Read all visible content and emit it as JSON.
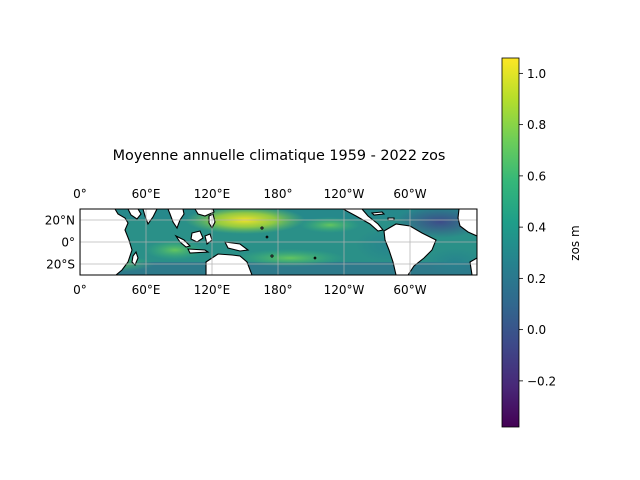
{
  "title": "Moyenne annuelle climatique 1959 - 2022 zos",
  "map": {
    "lon_ticks": [
      {
        "lon": 0,
        "label": "0°"
      },
      {
        "lon": 60,
        "label": "60°E"
      },
      {
        "lon": 120,
        "label": "120°E"
      },
      {
        "lon": 180,
        "label": "180°"
      },
      {
        "lon": 240,
        "label": "120°W"
      },
      {
        "lon": 300,
        "label": "60°W"
      }
    ],
    "lat_ticks": [
      {
        "lat": 20,
        "label": "20°N"
      },
      {
        "lat": 0,
        "label": "0°"
      },
      {
        "lat": -20,
        "label": "20°S"
      }
    ],
    "extent": {
      "lon_min": 0,
      "lon_max": 360,
      "lat_min": -30,
      "lat_max": 30
    }
  },
  "colorbar": {
    "label": "zos m",
    "vmin": -0.38,
    "vmax": 1.06,
    "ticks": [
      {
        "value": 1.0,
        "label": "1.0"
      },
      {
        "value": 0.8,
        "label": "0.8"
      },
      {
        "value": 0.6,
        "label": "0.6"
      },
      {
        "value": 0.4,
        "label": "0.4"
      },
      {
        "value": 0.2,
        "label": "0.2"
      },
      {
        "value": 0.0,
        "label": "0.0"
      },
      {
        "value": -0.2,
        "label": "−0.2"
      }
    ],
    "colormap": [
      "#440154",
      "#482878",
      "#3e4989",
      "#31688e",
      "#26828e",
      "#1f9e89",
      "#35b779",
      "#6ece58",
      "#b5de2b",
      "#fde725"
    ]
  }
}
